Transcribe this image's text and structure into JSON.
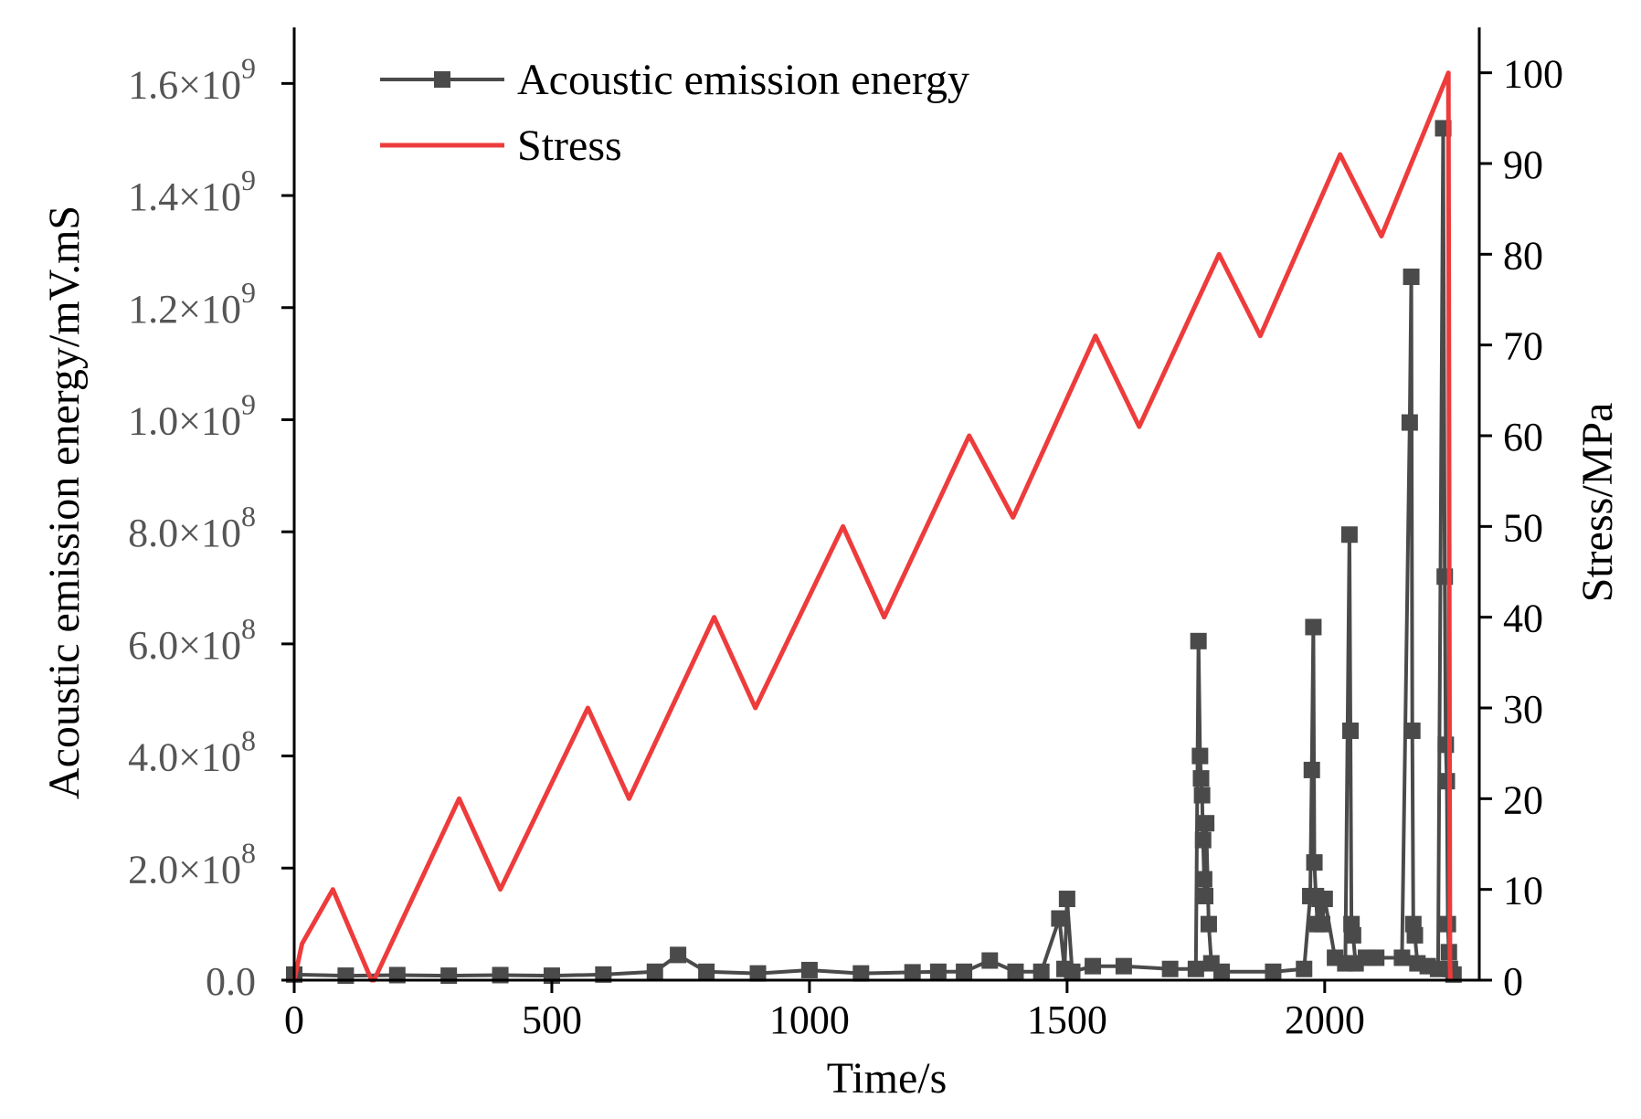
{
  "chart_data": {
    "type": "line",
    "title": "",
    "xlabel": "Time/s",
    "ylabel_left": "Acoustic emission energy/mV.mS",
    "ylabel_right": "Stress/MPa",
    "xlim": [
      0,
      2300
    ],
    "ylim_left": [
      0,
      1700000000.0
    ],
    "ylim_right": [
      0,
      105
    ],
    "x_ticks": [
      "0",
      "500",
      "1000",
      "1500",
      "2000"
    ],
    "x_tick_values": [
      0,
      500,
      1000,
      1500,
      2000
    ],
    "y_left_tick_values": [
      0,
      200000000.0,
      400000000.0,
      600000000.0,
      800000000.0,
      1000000000.0,
      1200000000.0,
      1400000000.0,
      1600000000.0
    ],
    "y_left_ticks": [
      {
        "mant": "0.0",
        "exp": ""
      },
      {
        "mant": "2.0×10",
        "exp": "8"
      },
      {
        "mant": "4.0×10",
        "exp": "8"
      },
      {
        "mant": "6.0×10",
        "exp": "8"
      },
      {
        "mant": "8.0×10",
        "exp": "8"
      },
      {
        "mant": "1.0×10",
        "exp": "9"
      },
      {
        "mant": "1.2×10",
        "exp": "9"
      },
      {
        "mant": "1.4×10",
        "exp": "9"
      },
      {
        "mant": "1.6×10",
        "exp": "9"
      }
    ],
    "y_right_ticks": [
      "0",
      "10",
      "20",
      "30",
      "40",
      "50",
      "60",
      "70",
      "80",
      "90",
      "100"
    ],
    "y_right_tick_values": [
      0,
      10,
      20,
      30,
      40,
      50,
      60,
      70,
      80,
      90,
      100
    ],
    "legend_position": "top-left",
    "series": [
      {
        "name": "Acoustic emission energy",
        "axis": "left",
        "color": "#4a4a4a",
        "marker": "square",
        "x": [
          0,
          100,
          200,
          300,
          400,
          500,
          600,
          700,
          745,
          800,
          900,
          1000,
          1100,
          1200,
          1250,
          1300,
          1350,
          1400,
          1450,
          1485,
          1495,
          1500,
          1510,
          1550,
          1610,
          1700,
          1750,
          1755,
          1758,
          1760,
          1762,
          1764,
          1766,
          1768,
          1770,
          1775,
          1780,
          1800,
          1900,
          1960,
          1972,
          1975,
          1978,
          1980,
          1983,
          1986,
          1990,
          1995,
          2000,
          2020,
          2040,
          2048,
          2050,
          2052,
          2055,
          2060,
          2080,
          2100,
          2150,
          2165,
          2168,
          2170,
          2172,
          2175,
          2180,
          2200,
          2220,
          2230,
          2233,
          2235,
          2237,
          2239,
          2241,
          2243,
          2250
        ],
        "y": [
          10000000.0,
          8000000.0,
          9000000.0,
          8000000.0,
          9000000.0,
          8000000.0,
          10000000.0,
          15000000.0,
          45000000.0,
          15000000.0,
          12000000.0,
          18000000.0,
          12000000.0,
          14000000.0,
          15000000.0,
          15000000.0,
          35000000.0,
          15000000.0,
          15000000.0,
          110000000.0,
          20000000.0,
          145000000.0,
          15000000.0,
          25000000.0,
          25000000.0,
          20000000.0,
          20000000.0,
          605000000.0,
          400000000.0,
          360000000.0,
          330000000.0,
          250000000.0,
          180000000.0,
          150000000.0,
          280000000.0,
          100000000.0,
          30000000.0,
          15000000.0,
          15000000.0,
          20000000.0,
          150000000.0,
          375000000.0,
          630000000.0,
          210000000.0,
          150000000.0,
          100000000.0,
          145000000.0,
          100000000.0,
          145000000.0,
          40000000.0,
          30000000.0,
          795000000.0,
          445000000.0,
          100000000.0,
          80000000.0,
          30000000.0,
          40000000.0,
          40000000.0,
          40000000.0,
          995000000.0,
          1255000000.0,
          445000000.0,
          100000000.0,
          80000000.0,
          30000000.0,
          25000000.0,
          20000000.0,
          1520000000.0,
          720000000.0,
          420000000.0,
          355000000.0,
          100000000.0,
          50000000.0,
          20000000.0,
          10000000.0
        ]
      },
      {
        "name": "Stress",
        "axis": "right",
        "color": "#ee3b3b",
        "x": [
          0,
          15,
          75,
          150,
          155,
          320,
          400,
          570,
          650,
          815,
          895,
          1065,
          1145,
          1310,
          1395,
          1555,
          1640,
          1795,
          1875,
          2030,
          2110,
          2240,
          2243,
          2244
        ],
        "y": [
          0,
          4,
          10,
          0,
          0,
          20,
          10,
          30,
          20,
          40,
          30,
          50,
          40,
          60,
          51,
          71,
          61,
          80,
          71,
          91,
          82,
          100,
          2,
          0
        ]
      }
    ]
  }
}
